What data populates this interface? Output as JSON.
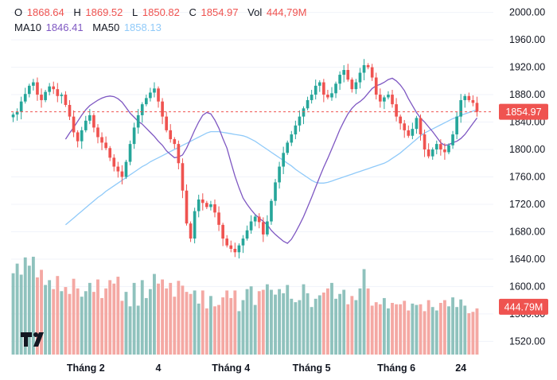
{
  "legend": {
    "o_label": "O",
    "o_value": "1868.64",
    "h_label": "H",
    "h_value": "1869.52",
    "l_label": "L",
    "l_value": "1850.82",
    "c_label": "C",
    "c_value": "1854.97",
    "vol_label": "Vol",
    "vol_value": "444,79M",
    "ma10_label": "MA10",
    "ma10_value": "1846.41",
    "ma50_label": "MA50",
    "ma50_value": "1858.13"
  },
  "colors": {
    "up": "#26a69a",
    "down": "#ef5350",
    "up_volume": "#8fc2bd",
    "down_volume": "#f4a8a3",
    "ma10": "#7e57c2",
    "ma50": "#90caf9",
    "last_price_badge": "#ef5350",
    "axis_text": "#131722",
    "grid": "#f0f3fa"
  },
  "chart_data": {
    "type": "candlestick",
    "price_axis": {
      "ticks": [
        2000,
        1960,
        1920,
        1880,
        1840,
        1800,
        1760,
        1720,
        1680,
        1640,
        1600,
        1560,
        1520
      ],
      "tick_labels": [
        "2000.00",
        "1960.00",
        "1920.00",
        "1880.00",
        "1840.00",
        "1800.00",
        "1760.00",
        "1720.00",
        "1680.00",
        "1640.00",
        "1600.00",
        "1560.00",
        "1520.00"
      ],
      "range": [
        1510,
        2010
      ]
    },
    "time_axis": {
      "labels": [
        {
          "text": "Tháng 2",
          "index": 18
        },
        {
          "text": "4",
          "index": 36
        },
        {
          "text": "Tháng 4",
          "index": 54
        },
        {
          "text": "Tháng 5",
          "index": 74
        },
        {
          "text": "Tháng 6",
          "index": 95
        },
        {
          "text": "24",
          "index": 111
        }
      ]
    },
    "last_price": {
      "value": 1854.97,
      "label": "1854.97"
    },
    "last_volume": {
      "label": "444.79M"
    },
    "close": [
      1851,
      1855,
      1870,
      1881,
      1893,
      1898,
      1880,
      1872,
      1884,
      1892,
      1888,
      1878,
      1880,
      1865,
      1848,
      1825,
      1812,
      1828,
      1842,
      1850,
      1832,
      1818,
      1810,
      1802,
      1788,
      1775,
      1768,
      1760,
      1782,
      1808,
      1832,
      1850,
      1866,
      1875,
      1883,
      1889,
      1870,
      1848,
      1828,
      1815,
      1808,
      1780,
      1740,
      1692,
      1670,
      1710,
      1727,
      1722,
      1716,
      1720,
      1708,
      1690,
      1670,
      1660,
      1655,
      1650,
      1660,
      1670,
      1682,
      1695,
      1702,
      1694,
      1676,
      1695,
      1725,
      1752,
      1775,
      1795,
      1810,
      1822,
      1835,
      1848,
      1860,
      1872,
      1880,
      1893,
      1898,
      1880,
      1876,
      1882,
      1896,
      1909,
      1916,
      1902,
      1888,
      1898,
      1912,
      1923,
      1920,
      1905,
      1880,
      1870,
      1876,
      1880,
      1866,
      1848,
      1838,
      1828,
      1820,
      1830,
      1846,
      1822,
      1800,
      1790,
      1800,
      1808,
      1800,
      1796,
      1806,
      1822,
      1848,
      1872,
      1878,
      1872,
      1868,
      1855
    ],
    "open_prev_offset": true,
    "ma10": [
      1815,
      1824,
      1832,
      1841,
      1850,
      1858,
      1864,
      1868,
      1872,
      1875,
      1877,
      1878,
      1877,
      1874,
      1869,
      1861,
      1853,
      1847,
      1841,
      1837,
      1831,
      1825,
      1819,
      1812,
      1806,
      1798,
      1793,
      1788,
      1789,
      1792,
      1802,
      1815,
      1828,
      1840,
      1850,
      1854,
      1852,
      1843,
      1831,
      1816,
      1802,
      1781,
      1761,
      1744,
      1729,
      1720,
      1712,
      1705,
      1700,
      1695,
      1690,
      1682,
      1676,
      1671,
      1666,
      1663,
      1669,
      1679,
      1690,
      1702,
      1716,
      1730,
      1745,
      1760,
      1774,
      1787,
      1801,
      1815,
      1829,
      1841,
      1852,
      1860,
      1866,
      1870,
      1875,
      1882,
      1889,
      1893,
      1895,
      1898,
      1902,
      1904,
      1900,
      1894,
      1886,
      1874,
      1864,
      1854,
      1846,
      1840,
      1833,
      1826,
      1818,
      1810,
      1806,
      1807,
      1810,
      1812,
      1816,
      1822,
      1830,
      1838,
      1846
    ],
    "ma50": [
      1690,
      1695,
      1700,
      1705,
      1710,
      1715,
      1720,
      1725,
      1730,
      1734,
      1739,
      1743,
      1747,
      1751,
      1755,
      1759,
      1763,
      1767,
      1771,
      1775,
      1778,
      1782,
      1785,
      1788,
      1791,
      1794,
      1797,
      1800,
      1803,
      1806,
      1809,
      1812,
      1815,
      1818,
      1821,
      1824,
      1826,
      1826,
      1826,
      1825,
      1824,
      1823,
      1822,
      1821,
      1820,
      1818,
      1815,
      1812,
      1808,
      1804,
      1800,
      1796,
      1792,
      1788,
      1784,
      1780,
      1776,
      1771,
      1767,
      1763,
      1759,
      1755,
      1752,
      1751,
      1751,
      1752,
      1754,
      1756,
      1758,
      1760,
      1762,
      1764,
      1766,
      1768,
      1770,
      1772,
      1774,
      1776,
      1778,
      1780,
      1783,
      1787,
      1791,
      1795,
      1800,
      1805,
      1810,
      1815,
      1820,
      1824,
      1827,
      1830,
      1833,
      1836,
      1839,
      1842,
      1845,
      1847,
      1850,
      1852,
      1854,
      1856,
      1858
    ],
    "volume": [
      118,
      132,
      116,
      141,
      129,
      142,
      112,
      123,
      101,
      108,
      95,
      114,
      92,
      98,
      88,
      110,
      96,
      84,
      92,
      104,
      91,
      109,
      82,
      96,
      108,
      103,
      113,
      78,
      91,
      70,
      104,
      71,
      108,
      82,
      95,
      117,
      103,
      109,
      96,
      104,
      84,
      107,
      100,
      91,
      88,
      93,
      74,
      93,
      67,
      85,
      70,
      72,
      83,
      93,
      82,
      93,
      63,
      79,
      95,
      99,
      72,
      92,
      94,
      102,
      94,
      87,
      95,
      89,
      101,
      81,
      76,
      79,
      102,
      89,
      69,
      81,
      86,
      90,
      96,
      104,
      81,
      88,
      94,
      73,
      85,
      79,
      96,
      124,
      96,
      71,
      76,
      73,
      82,
      67,
      75,
      73,
      73,
      78,
      64,
      74,
      72,
      73,
      63,
      79,
      69,
      64,
      75,
      79,
      70,
      83,
      69,
      80,
      71,
      60,
      62,
      67
    ],
    "volume_axis_max": 150
  }
}
